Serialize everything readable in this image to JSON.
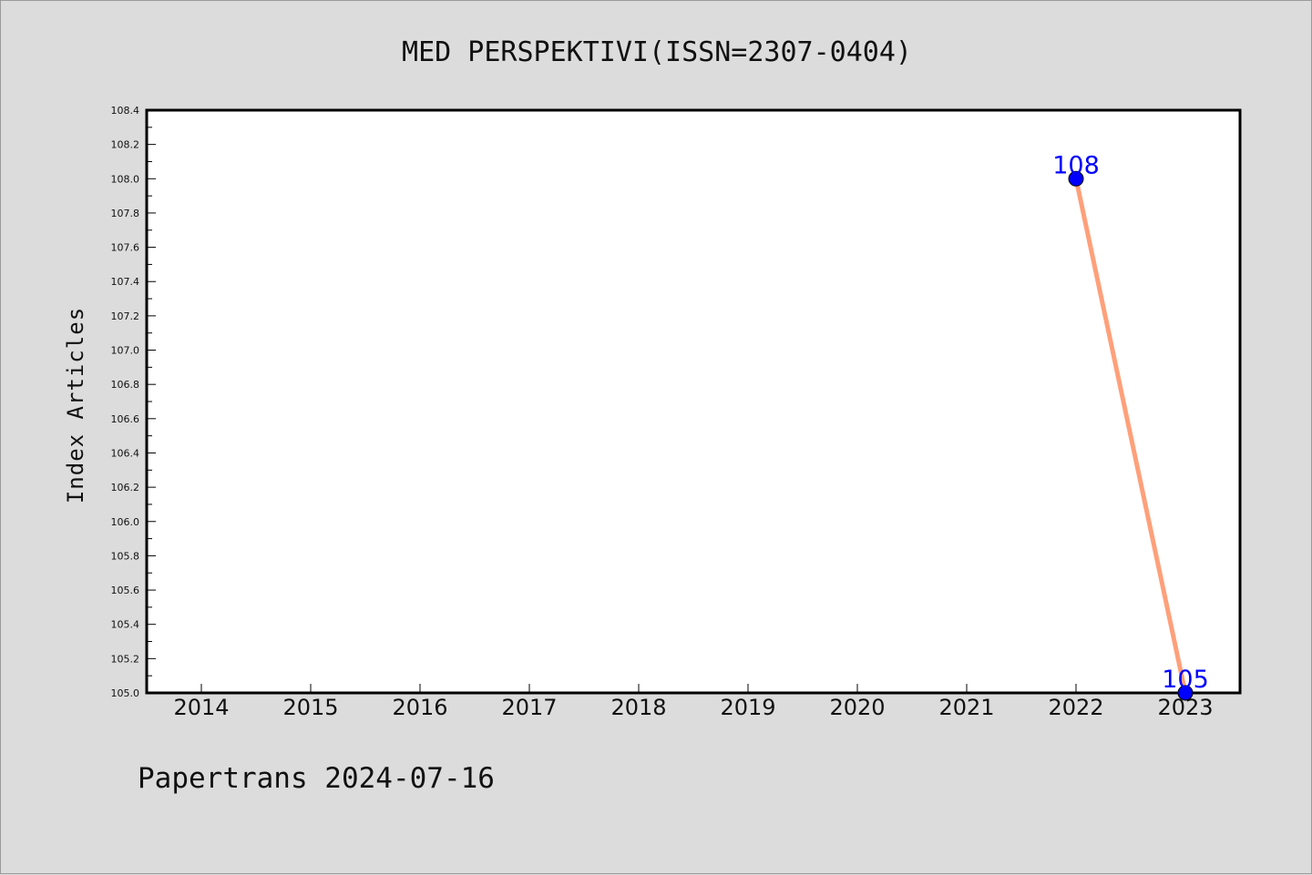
{
  "chart_data": {
    "type": "line",
    "title": "MED PERSPEKTIVI(ISSN=2307-0404)",
    "xlabel": "",
    "ylabel": "Index Articles",
    "categories": [
      "2014",
      "2015",
      "2016",
      "2017",
      "2018",
      "2019",
      "2020",
      "2021",
      "2022",
      "2023"
    ],
    "series": [
      {
        "x": [
          "2022",
          "2023"
        ],
        "values": [
          108,
          105
        ],
        "data_labels": [
          "108",
          "105"
        ]
      }
    ],
    "ylim": [
      105.0,
      108.4
    ],
    "yticks": [
      "105.0",
      "105.2",
      "105.4",
      "105.6",
      "105.8",
      "106.0",
      "106.2",
      "106.4",
      "106.6",
      "106.8",
      "107.0",
      "107.2",
      "107.4",
      "107.6",
      "107.8",
      "108.0",
      "108.2",
      "108.4"
    ],
    "grid": false,
    "colors": {
      "line": "#ffa07a",
      "marker": "#0000ff",
      "label": "#0000ff"
    }
  },
  "footer": "Papertrans 2024-07-16"
}
